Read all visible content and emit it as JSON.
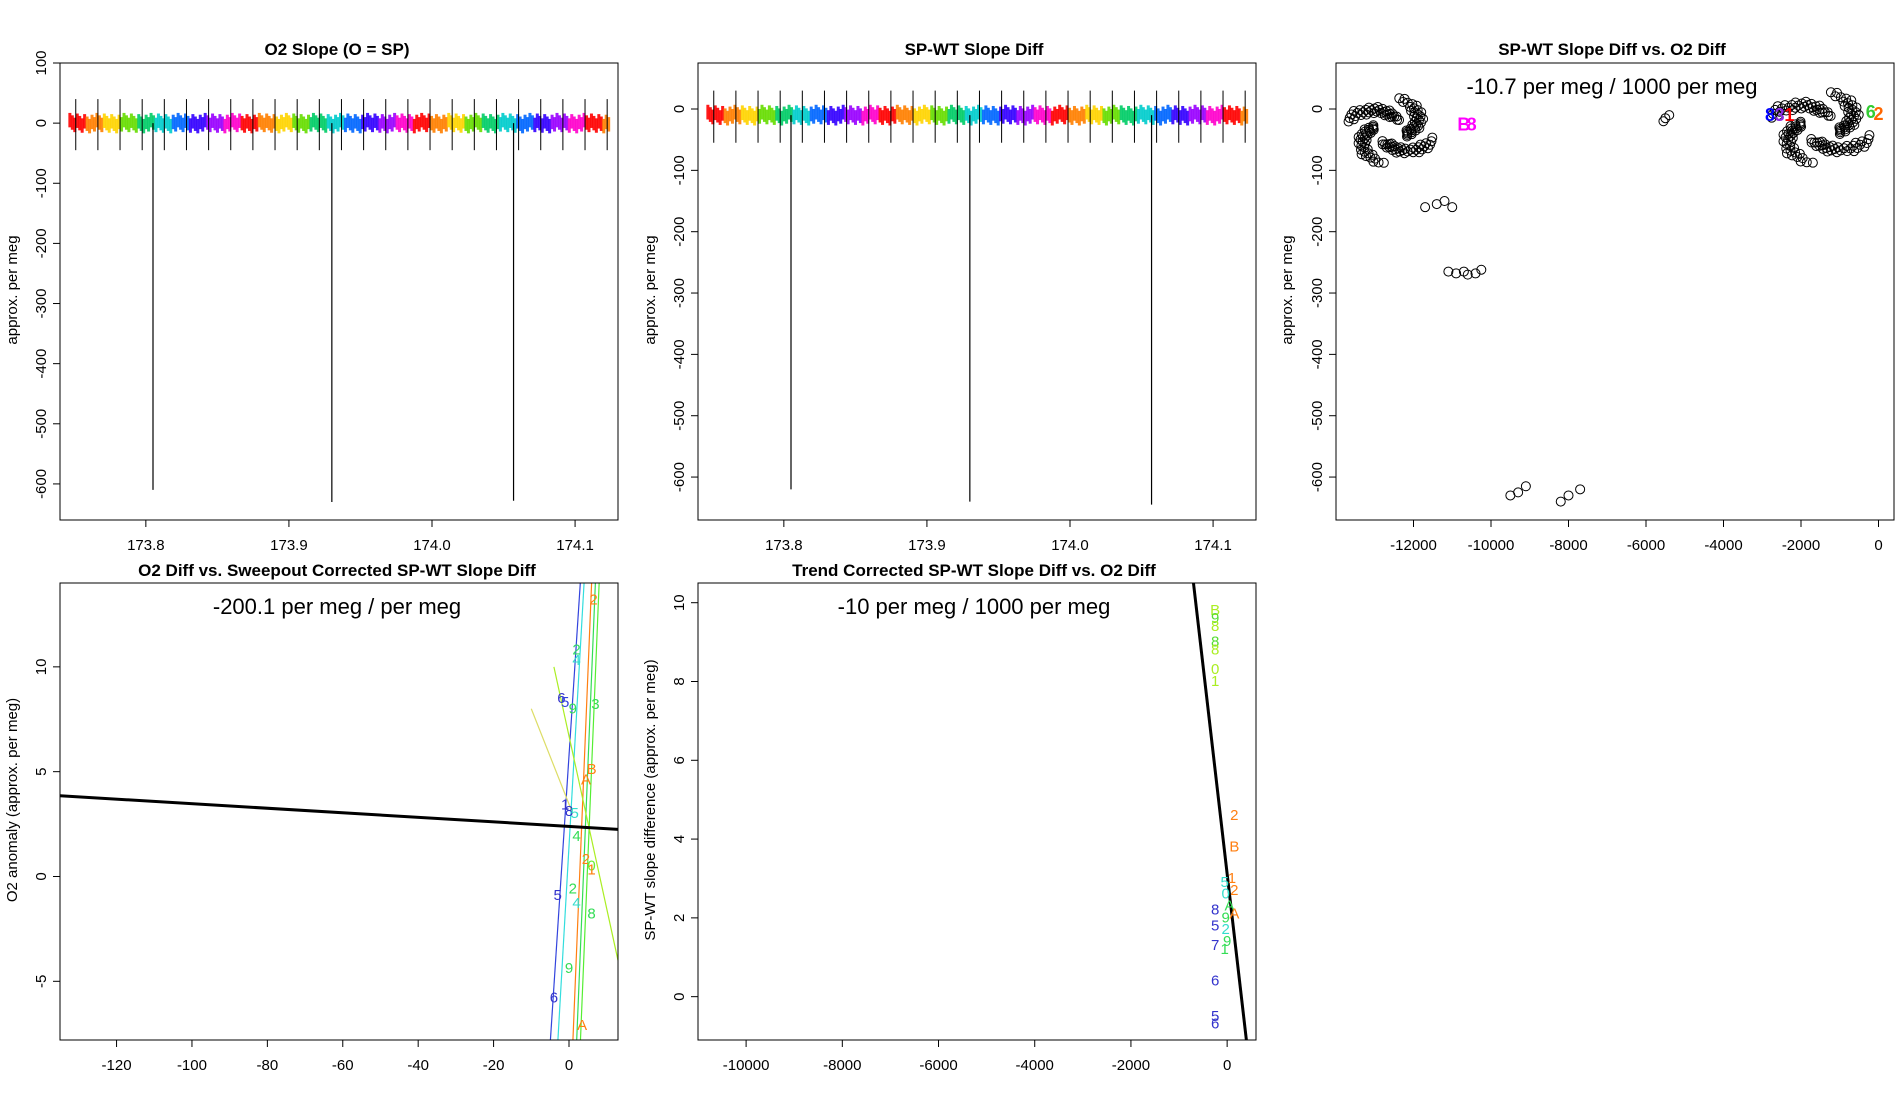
{
  "chart_data": [
    {
      "type": "line",
      "title": "O2 Slope (O = SP)",
      "xlabel": "",
      "ylabel": "approx. per meg",
      "xlim": [
        173.74,
        174.13
      ],
      "ylim": [
        -660,
        100
      ],
      "x_ticks": [
        173.8,
        173.9,
        174.0,
        174.1
      ],
      "x_tick_labels": [
        "173.8",
        "173.9",
        "174.0",
        "174.1"
      ],
      "y_ticks": [
        100,
        0,
        -100,
        -200,
        -300,
        -400,
        -500,
        -600
      ],
      "y_tick_labels": [
        "100",
        "0",
        "-100",
        "-200",
        "-300",
        "-400",
        "-500",
        "-600"
      ],
      "band_center": 0,
      "band_halfwidth": 12,
      "spikes": [
        {
          "x": 173.805,
          "y": -610
        },
        {
          "x": 173.93,
          "y": -630
        },
        {
          "x": 174.057,
          "y": -628
        }
      ]
    },
    {
      "type": "line",
      "title": "SP-WT Slope Diff",
      "xlabel": "",
      "ylabel": "approx. per meg",
      "xlim": [
        173.74,
        174.13
      ],
      "ylim": [
        -670,
        75
      ],
      "x_ticks": [
        173.8,
        173.9,
        174.0,
        174.1
      ],
      "x_tick_labels": [
        "173.8",
        "173.9",
        "174.0",
        "174.1"
      ],
      "y_ticks": [
        0,
        -100,
        -200,
        -300,
        -400,
        -500,
        -600
      ],
      "y_tick_labels": [
        "0",
        "-100",
        "-200",
        "-300",
        "-400",
        "-500",
        "-600"
      ],
      "band_center": -10,
      "band_halfwidth": 12,
      "spikes": [
        {
          "x": 173.805,
          "y": -620
        },
        {
          "x": 173.93,
          "y": -640
        },
        {
          "x": 174.057,
          "y": -645
        }
      ]
    },
    {
      "type": "scatter",
      "title": "SP-WT Slope Diff vs. O2 Diff",
      "annotation": "-10.7 per meg / 1000 per meg",
      "xlabel": "",
      "ylabel": "approx. per meg",
      "xlim": [
        -14000,
        400
      ],
      "ylim": [
        -670,
        75
      ],
      "x_ticks": [
        -12000,
        -10000,
        -8000,
        -6000,
        -4000,
        -2000,
        0
      ],
      "x_tick_labels": [
        "-12000",
        "-10000",
        "-8000",
        "-6000",
        "-4000",
        "-2000",
        "0"
      ],
      "y_ticks": [
        0,
        -100,
        -200,
        -300,
        -400,
        -500,
        -600
      ],
      "y_tick_labels": [
        "0",
        "-100",
        "-200",
        "-300",
        "-400",
        "-500",
        "-600"
      ],
      "points": [
        [
          -11400,
          -155
        ],
        [
          -11000,
          -160
        ],
        [
          -11700,
          -160
        ],
        [
          -11200,
          -150
        ],
        [
          -11100,
          -265
        ],
        [
          -10900,
          -268
        ],
        [
          -10600,
          -270
        ],
        [
          -10400,
          -268
        ],
        [
          -10250,
          -262
        ],
        [
          -10700,
          -265
        ],
        [
          -9500,
          -630
        ],
        [
          -9300,
          -625
        ],
        [
          -9100,
          -615
        ],
        [
          -8200,
          -640
        ],
        [
          -8000,
          -630
        ],
        [
          -7700,
          -620
        ],
        [
          -5500,
          -15
        ],
        [
          -5400,
          -10
        ],
        [
          -5550,
          -20
        ]
      ],
      "clusters": [
        {
          "cx": -12600,
          "cy": -35,
          "rx": 1200,
          "ry": 55
        },
        {
          "cx": -1500,
          "cy": -30,
          "rx": 1400,
          "ry": 60
        }
      ],
      "labels": [
        {
          "x": -10700,
          "y": -25,
          "text": "B",
          "color": "#ff00ff"
        },
        {
          "x": -10500,
          "y": -25,
          "text": "8",
          "color": "#ff00ff"
        },
        {
          "x": -2800,
          "y": -10,
          "text": "8",
          "color": "#0000ff"
        },
        {
          "x": -2550,
          "y": -10,
          "text": "3",
          "color": "#8a2be2"
        },
        {
          "x": -2300,
          "y": -10,
          "text": "1",
          "color": "#ff0000"
        },
        {
          "x": -200,
          "y": -5,
          "text": "6",
          "color": "#33cc33"
        },
        {
          "x": 0,
          "y": -8,
          "text": "2",
          "color": "#ff6600"
        }
      ]
    },
    {
      "type": "scatter",
      "title": "O2 Diff vs. Sweepout Corrected SP-WT Slope Diff",
      "annotation": "-200.1 per meg / per meg",
      "xlabel": "",
      "ylabel": "O2 anomaly (approx. per meg)",
      "xlim": [
        -135,
        13
      ],
      "ylim": [
        -7.8,
        14
      ],
      "x_ticks": [
        -120,
        -100,
        -80,
        -60,
        -40,
        -20,
        0
      ],
      "x_tick_labels": [
        "-120",
        "-100",
        "-80",
        "-60",
        "-40",
        "-20",
        "0"
      ],
      "y_ticks": [
        10,
        5,
        0,
        -5
      ],
      "y_tick_labels": [
        "10",
        "5",
        "0",
        "-5"
      ],
      "fit_line": [
        [
          -135,
          3.85
        ],
        [
          13,
          2.25
        ]
      ],
      "thin_lines": [
        {
          "x1": -5,
          "y1": -8,
          "x2": 3,
          "y2": 14,
          "color": "#3344dd"
        },
        {
          "x1": -3,
          "y1": -8,
          "x2": 4,
          "y2": 14,
          "color": "#33dddd"
        },
        {
          "x1": 1,
          "y1": -8,
          "x2": 6,
          "y2": 14,
          "color": "#ff7f11"
        },
        {
          "x1": 2,
          "y1": -8,
          "x2": 7,
          "y2": 14,
          "color": "#33dd55"
        },
        {
          "x1": 3,
          "y1": -8,
          "x2": 8,
          "y2": 14,
          "color": "#55ee33"
        },
        {
          "x1": -4,
          "y1": 10,
          "x2": 13,
          "y2": -4,
          "color": "#aaee22"
        },
        {
          "x1": -10,
          "y1": 8,
          "x2": 1,
          "y2": 3,
          "color": "#dddd66"
        }
      ],
      "labels": [
        {
          "x": 2,
          "y": 10.8,
          "text": "2",
          "color": "#33dd66"
        },
        {
          "x": 2,
          "y": 10.3,
          "text": "4",
          "color": "#33ddcc"
        },
        {
          "x": -2,
          "y": 8.5,
          "text": "6",
          "color": "#3333cc"
        },
        {
          "x": -1,
          "y": 8.3,
          "text": "5",
          "color": "#3344dd"
        },
        {
          "x": 1,
          "y": 8.0,
          "text": "9",
          "color": "#33dd55"
        },
        {
          "x": 7,
          "y": 8.2,
          "text": "3",
          "color": "#33dd55"
        },
        {
          "x": 6,
          "y": 5.1,
          "text": "B",
          "color": "#ff7f11"
        },
        {
          "x": 4.5,
          "y": 4.6,
          "text": "A",
          "color": "#ff7f11"
        },
        {
          "x": 6.5,
          "y": 13.2,
          "text": "2",
          "color": "#ff7f11"
        },
        {
          "x": -1,
          "y": 3.4,
          "text": "1",
          "color": "#3333cc"
        },
        {
          "x": 0,
          "y": 3.1,
          "text": "8",
          "color": "#3333cc"
        },
        {
          "x": 1.5,
          "y": 3.0,
          "text": "5",
          "color": "#33ddcc"
        },
        {
          "x": 2,
          "y": 1.9,
          "text": "4",
          "color": "#33dd55"
        },
        {
          "x": 4.5,
          "y": 0.8,
          "text": "2",
          "color": "#ff7f11"
        },
        {
          "x": 6,
          "y": 0.5,
          "text": "0",
          "color": "#66ee33"
        },
        {
          "x": 6,
          "y": 0.3,
          "text": "1",
          "color": "#ff7f11"
        },
        {
          "x": -3,
          "y": -0.9,
          "text": "5",
          "color": "#3333cc"
        },
        {
          "x": 1,
          "y": -0.6,
          "text": "2",
          "color": "#33dd55"
        },
        {
          "x": 2,
          "y": -1.3,
          "text": "4",
          "color": "#33ddcc"
        },
        {
          "x": 6,
          "y": -1.8,
          "text": "8",
          "color": "#33dd55"
        },
        {
          "x": 0,
          "y": -4.4,
          "text": "9",
          "color": "#33dd55"
        },
        {
          "x": -4,
          "y": -5.8,
          "text": "6",
          "color": "#3333cc"
        },
        {
          "x": 3.5,
          "y": -7.1,
          "text": "A",
          "color": "#ff7f11"
        }
      ]
    },
    {
      "type": "scatter",
      "title": "Trend Corrected SP-WT Slope Diff vs. O2 Diff",
      "annotation": "-10 per meg / 1000 per meg",
      "xlabel": "",
      "ylabel": "SP-WT slope difference (approx. per meg)",
      "xlim": [
        -11000,
        600
      ],
      "ylim": [
        -1.1,
        10.5
      ],
      "x_ticks": [
        -10000,
        -8000,
        -6000,
        -4000,
        -2000,
        0
      ],
      "x_tick_labels": [
        "-10000",
        "-8000",
        "-6000",
        "-4000",
        "-2000",
        "0"
      ],
      "y_ticks": [
        10,
        8,
        6,
        4,
        2,
        0
      ],
      "y_tick_labels": [
        "10",
        "8",
        "6",
        "4",
        "2",
        "0"
      ],
      "fit_line": [
        [
          -700,
          10.5
        ],
        [
          400,
          -1.1
        ]
      ],
      "labels": [
        {
          "x": -250,
          "y": 9.8,
          "text": "B",
          "color": "#aaee22"
        },
        {
          "x": -250,
          "y": 9.6,
          "text": "9",
          "color": "#55dd33"
        },
        {
          "x": -250,
          "y": 9.4,
          "text": "8",
          "color": "#aaee22"
        },
        {
          "x": -250,
          "y": 9.0,
          "text": "8",
          "color": "#55dd33"
        },
        {
          "x": -250,
          "y": 8.8,
          "text": "8",
          "color": "#aaee22"
        },
        {
          "x": -250,
          "y": 8.3,
          "text": "0",
          "color": "#aaee22"
        },
        {
          "x": -250,
          "y": 8.0,
          "text": "1",
          "color": "#aaee22"
        },
        {
          "x": 150,
          "y": 4.6,
          "text": "2",
          "color": "#ff7f11"
        },
        {
          "x": 150,
          "y": 3.8,
          "text": "B",
          "color": "#ff7f11"
        },
        {
          "x": 100,
          "y": 3.0,
          "text": "1",
          "color": "#ff7f11"
        },
        {
          "x": -50,
          "y": 2.9,
          "text": "5",
          "color": "#33ddcc"
        },
        {
          "x": 150,
          "y": 2.7,
          "text": "2",
          "color": "#ff7f11"
        },
        {
          "x": -30,
          "y": 2.6,
          "text": "0",
          "color": "#33ddcc"
        },
        {
          "x": 50,
          "y": 2.3,
          "text": "A",
          "color": "#33dd55"
        },
        {
          "x": 150,
          "y": 2.1,
          "text": "A",
          "color": "#ff7f11"
        },
        {
          "x": -250,
          "y": 2.2,
          "text": "8",
          "color": "#3333cc"
        },
        {
          "x": -30,
          "y": 2.0,
          "text": "9",
          "color": "#33dd55"
        },
        {
          "x": -250,
          "y": 1.8,
          "text": "5",
          "color": "#3333cc"
        },
        {
          "x": -30,
          "y": 1.7,
          "text": "2",
          "color": "#33ddcc"
        },
        {
          "x": 0,
          "y": 1.4,
          "text": "9",
          "color": "#33dd55"
        },
        {
          "x": -250,
          "y": 1.3,
          "text": "7",
          "color": "#3333cc"
        },
        {
          "x": -50,
          "y": 1.2,
          "text": "1",
          "color": "#33dd55"
        },
        {
          "x": -250,
          "y": 0.4,
          "text": "6",
          "color": "#3333cc"
        },
        {
          "x": -250,
          "y": -0.5,
          "text": "5",
          "color": "#3333cc"
        },
        {
          "x": -250,
          "y": -0.7,
          "text": "6",
          "color": "#3333cc"
        }
      ]
    }
  ]
}
